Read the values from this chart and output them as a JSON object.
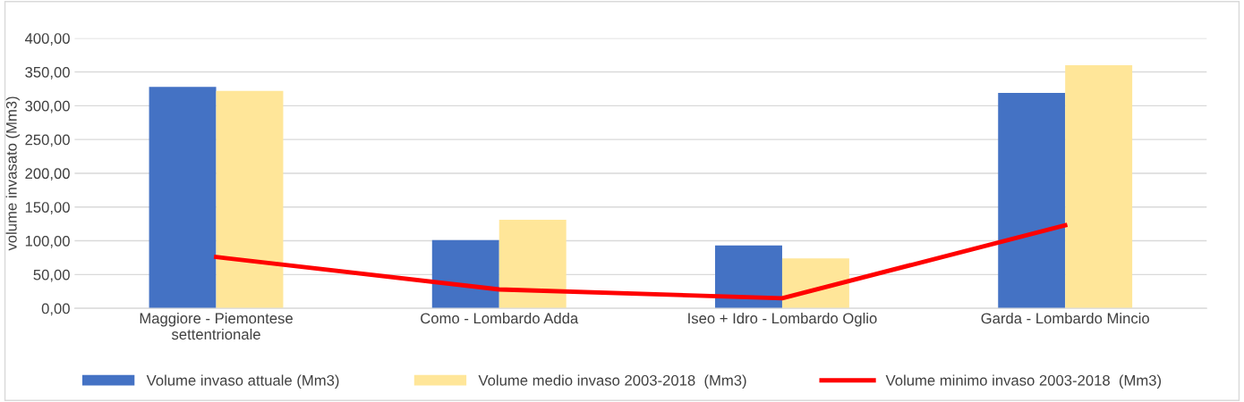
{
  "chart_data": {
    "type": "bar",
    "ylabel": "volume invasato (Mm3)",
    "categories": [
      "Maggiore - Piemontese settentrionale",
      "Como - Lombardo Adda",
      "Iseo + Idro - Lombardo Oglio",
      "Garda - Lombardo Mincio"
    ],
    "series": [
      {
        "name": "Volume invaso attuale (Mm3)",
        "color": "#4472c4",
        "values": [
          328,
          101,
          93,
          319
        ]
      },
      {
        "name": "Volume medio invaso 2003-2018  (Mm3)",
        "color": "#ffe699",
        "values": [
          322,
          131,
          74,
          360
        ]
      },
      {
        "name": "Volume minimo invaso 2003-2018  (Mm3)",
        "type": "line",
        "color": "#ff0000",
        "values": [
          76,
          28,
          15,
          123
        ]
      }
    ],
    "ylim": [
      0,
      400
    ],
    "yticks": [
      {
        "value": 0,
        "label": "0,00"
      },
      {
        "value": 50,
        "label": "50,00"
      },
      {
        "value": 100,
        "label": "100,00"
      },
      {
        "value": 150,
        "label": "150,00"
      },
      {
        "value": 200,
        "label": "200,00"
      },
      {
        "value": 250,
        "label": "250,00"
      },
      {
        "value": 300,
        "label": "300,00"
      },
      {
        "value": 350,
        "label": "350,00"
      },
      {
        "value": 400,
        "label": "400,00"
      }
    ],
    "grid": "y",
    "legend": "bottom"
  }
}
